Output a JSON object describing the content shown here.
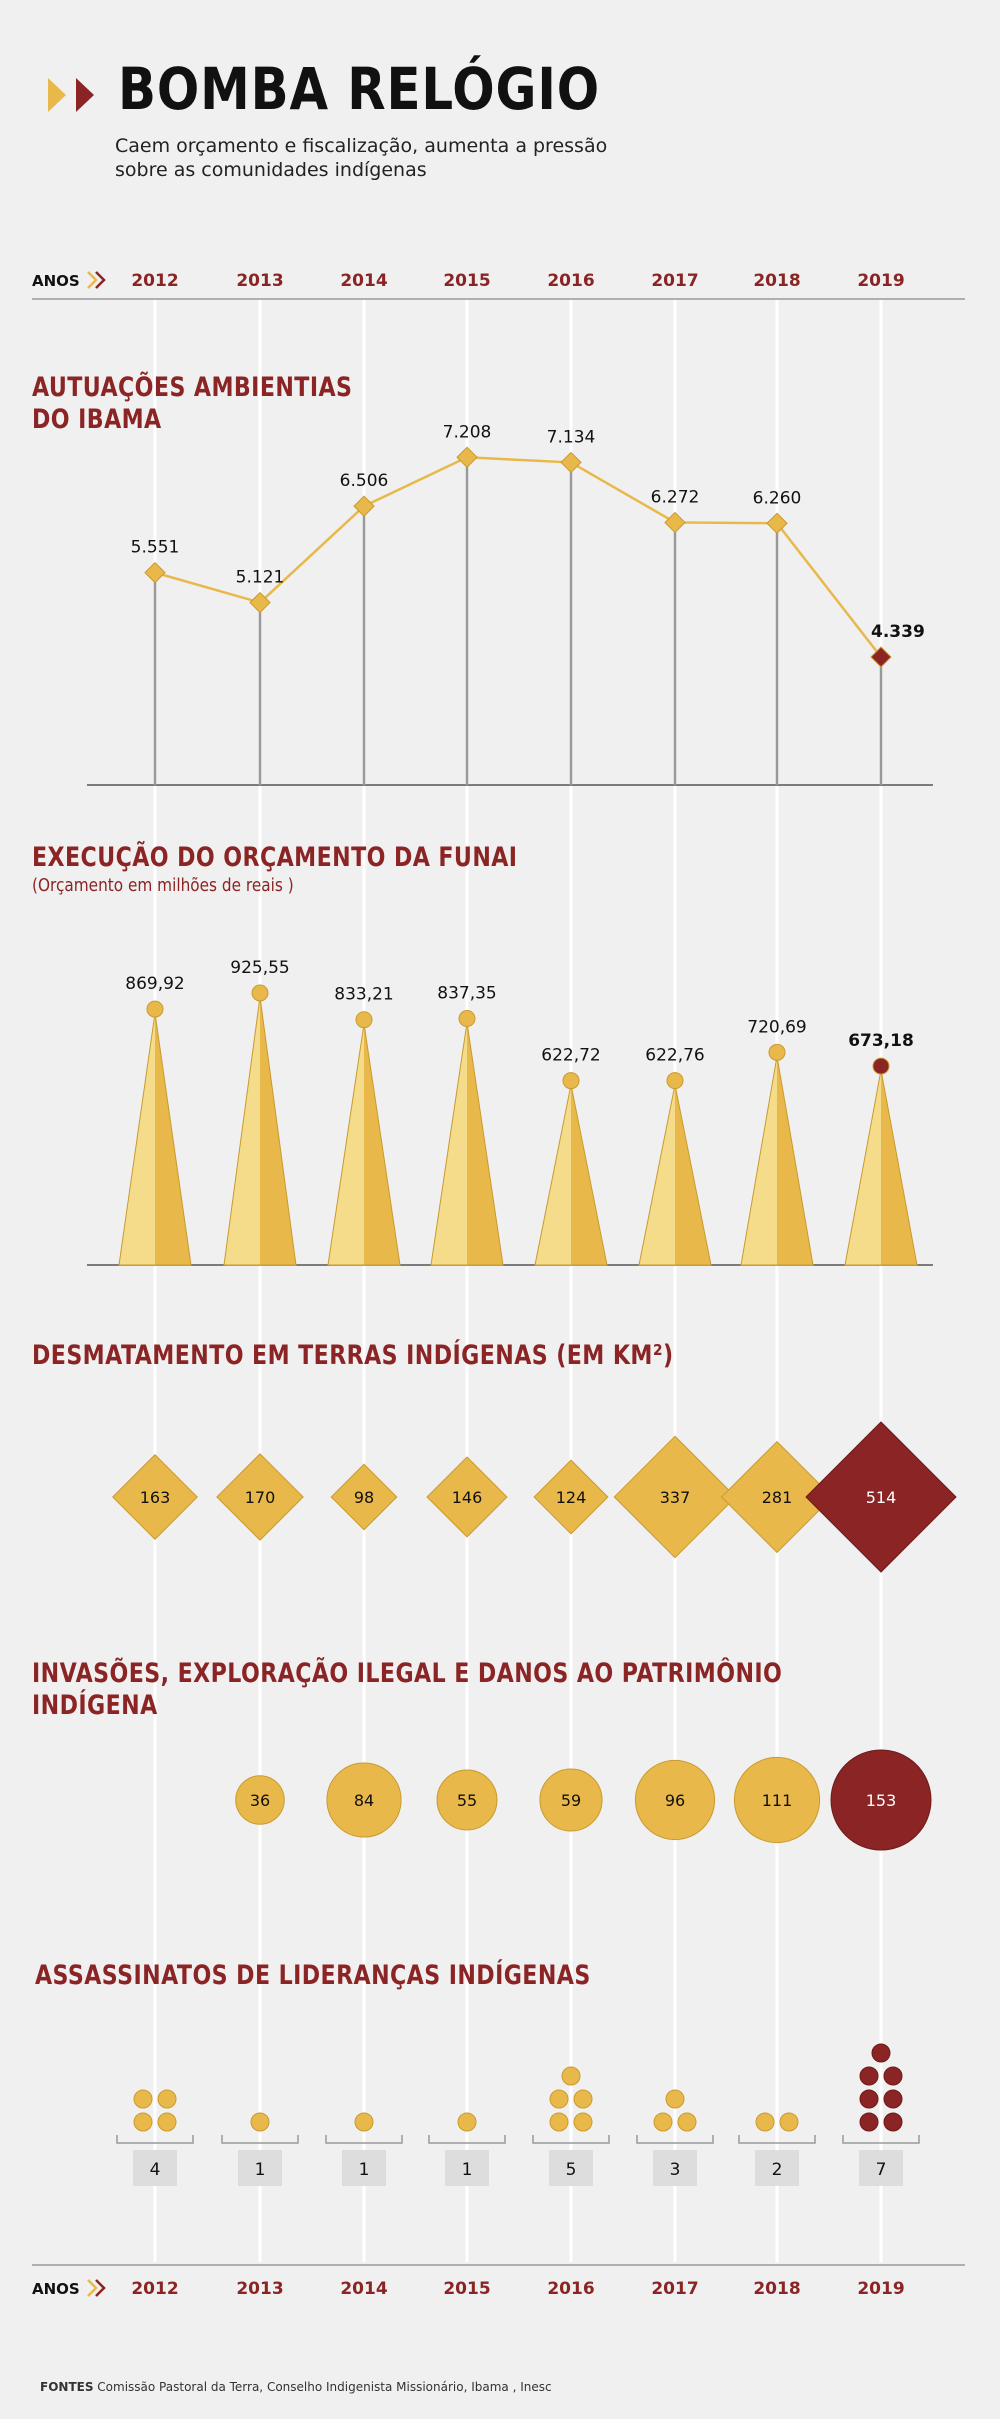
{
  "header": {
    "title": "BOMBA RELÓGIO",
    "subtitle": "Caem orçamento e fiscalização, aumenta a pressão sobre as comunidades indígenas"
  },
  "axis": {
    "label": "ANOS",
    "years": [
      "2012",
      "2013",
      "2014",
      "2015",
      "2016",
      "2017",
      "2018",
      "2019"
    ]
  },
  "sections": {
    "ibama": {
      "title": "AUTUAÇÕES AMBIENTIAS\nDO IBAMA"
    },
    "funai": {
      "title": "EXECUÇÃO DO ORÇAMENTO DA FUNAI",
      "subtitle": "(Orçamento em milhões de reais )"
    },
    "desmatamento": {
      "title": "DESMATAMENTO EM TERRAS INDÍGENAS (EM KM²)"
    },
    "invasoes": {
      "title": "INVASÕES, EXPLORAÇÃO ILEGAL E DANOS AO PATRIMÔNIO INDÍGENA"
    },
    "assassinatos": {
      "title": "ASSASSINATOS DE LIDERANÇAS INDÍGENAS"
    }
  },
  "footer": {
    "label": "FONTES",
    "text": "Comissão Pastoral da Terra, Conselho Indigenista Missionário, Ibama , Inesc"
  },
  "colors": {
    "accent": "#e8b84a",
    "highlight": "#8b2424",
    "light": "#f5dc8a",
    "grid": "#bbbbbb",
    "text": "#111111"
  },
  "chart_data": [
    {
      "type": "line",
      "name": "ibama",
      "x": [
        "2012",
        "2013",
        "2014",
        "2015",
        "2016",
        "2017",
        "2018",
        "2019"
      ],
      "values": [
        5551,
        5121,
        6506,
        7208,
        7134,
        6272,
        6260,
        4339
      ],
      "labels": [
        "5.551",
        "5.121",
        "6.506",
        "7.208",
        "7.134",
        "6.272",
        "6.260",
        "4.339"
      ],
      "ylim": [
        2500,
        7600
      ]
    },
    {
      "type": "bar",
      "name": "funai",
      "categories": [
        "2012",
        "2013",
        "2014",
        "2015",
        "2016",
        "2017",
        "2018",
        "2019"
      ],
      "values": [
        869.92,
        925.55,
        833.21,
        837.35,
        622.72,
        622.76,
        720.69,
        673.18
      ],
      "labels": [
        "869,92",
        "925,55",
        "833,21",
        "837,35",
        "622,72",
        "622,76",
        "720,69",
        "673,18"
      ]
    },
    {
      "type": "scatter",
      "name": "desmatamento",
      "x": [
        "2012",
        "2013",
        "2014",
        "2015",
        "2016",
        "2017",
        "2018",
        "2019"
      ],
      "values": [
        163,
        170,
        98,
        146,
        124,
        337,
        281,
        514
      ]
    },
    {
      "type": "scatter",
      "name": "invasoes",
      "x": [
        "2013",
        "2014",
        "2015",
        "2016",
        "2017",
        "2018",
        "2019"
      ],
      "values": [
        36,
        84,
        55,
        59,
        96,
        111,
        153
      ]
    },
    {
      "type": "bar",
      "name": "assassinatos",
      "categories": [
        "2012",
        "2013",
        "2014",
        "2015",
        "2016",
        "2017",
        "2018",
        "2019"
      ],
      "values": [
        4,
        1,
        1,
        1,
        5,
        3,
        2,
        7
      ]
    }
  ]
}
